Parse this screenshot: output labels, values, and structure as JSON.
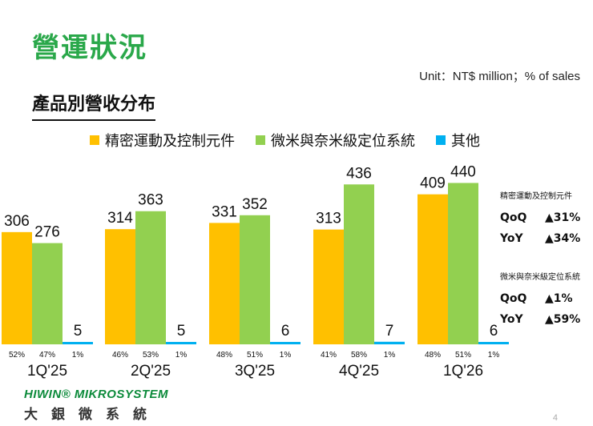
{
  "page": {
    "title": "營運狀況",
    "unit_note": "Unit：NT$ million；% of sales",
    "section_title": "產品別營收分布",
    "page_number": "4"
  },
  "colors": {
    "title_green": "#2aa84a",
    "series": [
      "#ffc000",
      "#92d050",
      "#00b0f0"
    ]
  },
  "chart_data": {
    "type": "bar",
    "categories": [
      "1Q'25",
      "2Q'25",
      "3Q'25",
      "4Q'25",
      "1Q'26"
    ],
    "series": [
      {
        "name": "精密運動及控制元件",
        "values": [
          306,
          314,
          331,
          313,
          409
        ],
        "shares": [
          "52%",
          "46%",
          "48%",
          "41%",
          "48%"
        ]
      },
      {
        "name": "微米與奈米級定位系統",
        "values": [
          276,
          363,
          352,
          436,
          440
        ],
        "shares": [
          "47%",
          "53%",
          "51%",
          "58%",
          "51%"
        ]
      },
      {
        "name": "其他",
        "values": [
          5,
          5,
          6,
          7,
          6
        ],
        "shares": [
          "1%",
          "1%",
          "1%",
          "1%",
          "1%"
        ]
      }
    ],
    "ylim": [
      0,
      480
    ],
    "grid": false,
    "legend_position": "top"
  },
  "side_panel": [
    {
      "heading": "精密運動及控制元件",
      "rows": [
        {
          "metric": "QoQ",
          "value": "▲31%"
        },
        {
          "metric": "YoY",
          "value": "▲34%"
        }
      ]
    },
    {
      "heading": "微米與奈米級定位系統",
      "rows": [
        {
          "metric": "QoQ",
          "value": "▲1%"
        },
        {
          "metric": "YoY",
          "value": "▲59%"
        }
      ]
    }
  ],
  "logo": {
    "en": "HIWIN® MIKROSYSTEM",
    "zh": "大銀微系統"
  }
}
